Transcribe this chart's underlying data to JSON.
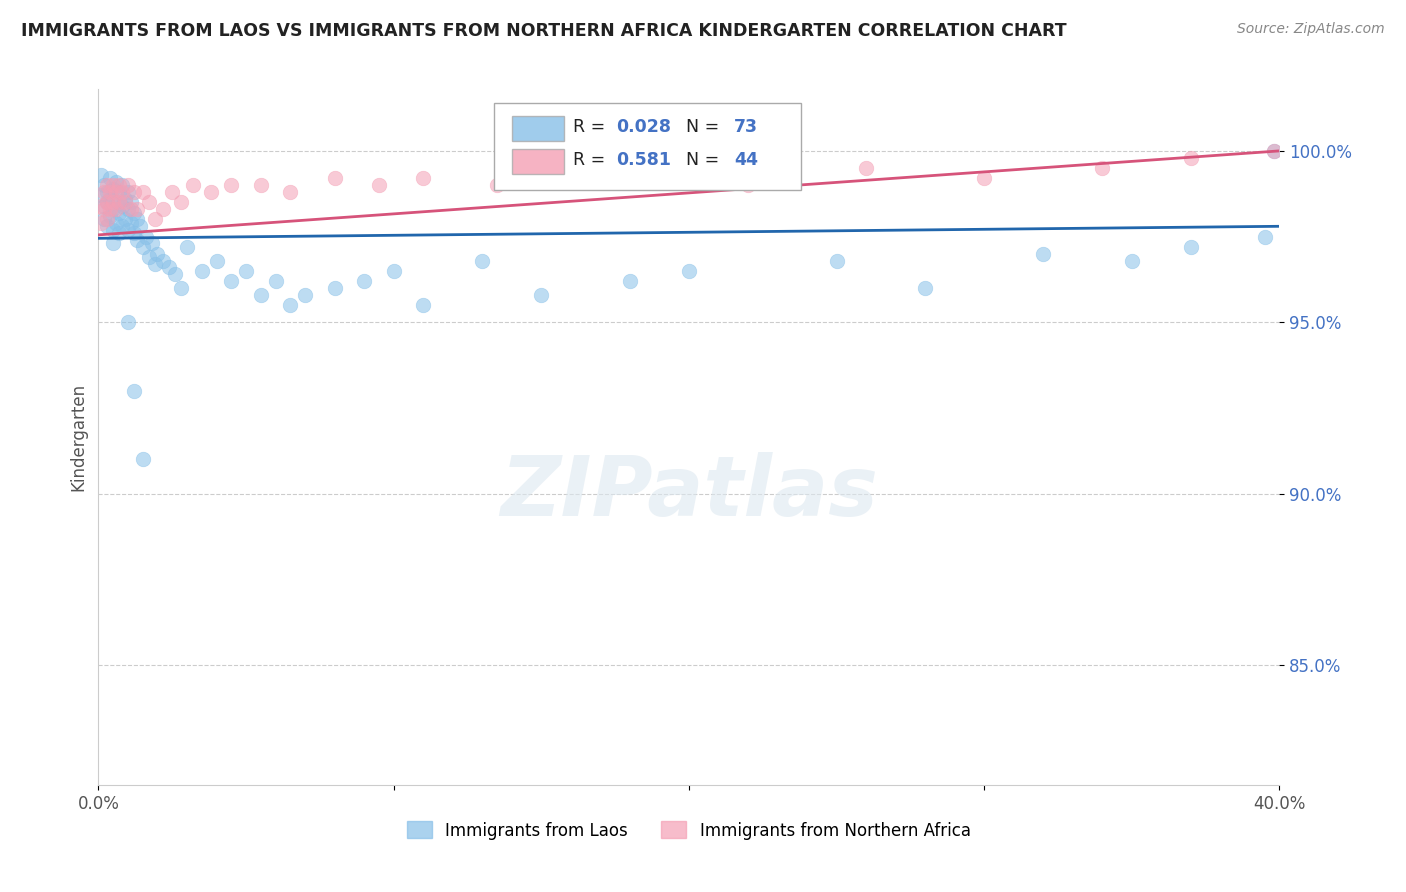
{
  "title": "IMMIGRANTS FROM LAOS VS IMMIGRANTS FROM NORTHERN AFRICA KINDERGARTEN CORRELATION CHART",
  "source_text": "Source: ZipAtlas.com",
  "ylabel": "Kindergarten",
  "xlim": [
    0.0,
    0.4
  ],
  "ylim": [
    0.815,
    1.018
  ],
  "xticks": [
    0.0,
    0.1,
    0.2,
    0.3,
    0.4
  ],
  "xtick_labels": [
    "0.0%",
    "",
    "",
    "",
    "40.0%"
  ],
  "yticks": [
    0.85,
    0.9,
    0.95,
    1.0
  ],
  "ytick_labels": [
    "85.0%",
    "90.0%",
    "95.0%",
    "100.0%"
  ],
  "blue_color": "#88c0e8",
  "pink_color": "#f4a0b5",
  "blue_line_color": "#2166ac",
  "pink_line_color": "#d6537a",
  "R_blue": 0.028,
  "N_blue": 73,
  "R_pink": 0.581,
  "N_pink": 44,
  "legend_label_blue": "Immigrants from Laos",
  "legend_label_pink": "Immigrants from Northern Africa",
  "blue_scatter_x": [
    0.001,
    0.001,
    0.002,
    0.002,
    0.002,
    0.003,
    0.003,
    0.003,
    0.004,
    0.004,
    0.004,
    0.005,
    0.005,
    0.005,
    0.005,
    0.006,
    0.006,
    0.006,
    0.007,
    0.007,
    0.007,
    0.008,
    0.008,
    0.008,
    0.009,
    0.009,
    0.01,
    0.01,
    0.01,
    0.011,
    0.011,
    0.012,
    0.012,
    0.013,
    0.013,
    0.014,
    0.015,
    0.016,
    0.017,
    0.018,
    0.019,
    0.02,
    0.022,
    0.024,
    0.026,
    0.028,
    0.03,
    0.035,
    0.04,
    0.045,
    0.05,
    0.055,
    0.06,
    0.065,
    0.07,
    0.08,
    0.09,
    0.1,
    0.11,
    0.13,
    0.15,
    0.18,
    0.2,
    0.25,
    0.28,
    0.32,
    0.35,
    0.37,
    0.395,
    0.398,
    0.01,
    0.012,
    0.015
  ],
  "blue_scatter_y": [
    0.993,
    0.987,
    0.99,
    0.984,
    0.98,
    0.988,
    0.985,
    0.978,
    0.992,
    0.986,
    0.981,
    0.989,
    0.983,
    0.977,
    0.973,
    0.991,
    0.985,
    0.979,
    0.988,
    0.982,
    0.976,
    0.99,
    0.984,
    0.978,
    0.986,
    0.98,
    0.988,
    0.983,
    0.977,
    0.985,
    0.979,
    0.982,
    0.976,
    0.98,
    0.974,
    0.978,
    0.972,
    0.975,
    0.969,
    0.973,
    0.967,
    0.97,
    0.968,
    0.966,
    0.964,
    0.96,
    0.972,
    0.965,
    0.968,
    0.962,
    0.965,
    0.958,
    0.962,
    0.955,
    0.958,
    0.96,
    0.962,
    0.965,
    0.955,
    0.968,
    0.958,
    0.962,
    0.965,
    0.968,
    0.96,
    0.97,
    0.968,
    0.972,
    0.975,
    1.0,
    0.95,
    0.93,
    0.91
  ],
  "pink_scatter_x": [
    0.001,
    0.001,
    0.002,
    0.002,
    0.003,
    0.003,
    0.003,
    0.004,
    0.004,
    0.005,
    0.005,
    0.006,
    0.006,
    0.007,
    0.007,
    0.008,
    0.009,
    0.01,
    0.011,
    0.012,
    0.013,
    0.015,
    0.017,
    0.019,
    0.022,
    0.025,
    0.028,
    0.032,
    0.038,
    0.045,
    0.055,
    0.065,
    0.08,
    0.095,
    0.11,
    0.135,
    0.16,
    0.19,
    0.22,
    0.26,
    0.3,
    0.34,
    0.37,
    0.398
  ],
  "pink_scatter_y": [
    0.984,
    0.979,
    0.988,
    0.983,
    0.99,
    0.985,
    0.98,
    0.988,
    0.983,
    0.99,
    0.985,
    0.988,
    0.983,
    0.99,
    0.985,
    0.988,
    0.985,
    0.99,
    0.983,
    0.988,
    0.983,
    0.988,
    0.985,
    0.98,
    0.983,
    0.988,
    0.985,
    0.99,
    0.988,
    0.99,
    0.99,
    0.988,
    0.992,
    0.99,
    0.992,
    0.99,
    0.995,
    0.992,
    0.99,
    0.995,
    0.992,
    0.995,
    0.998,
    1.0
  ]
}
